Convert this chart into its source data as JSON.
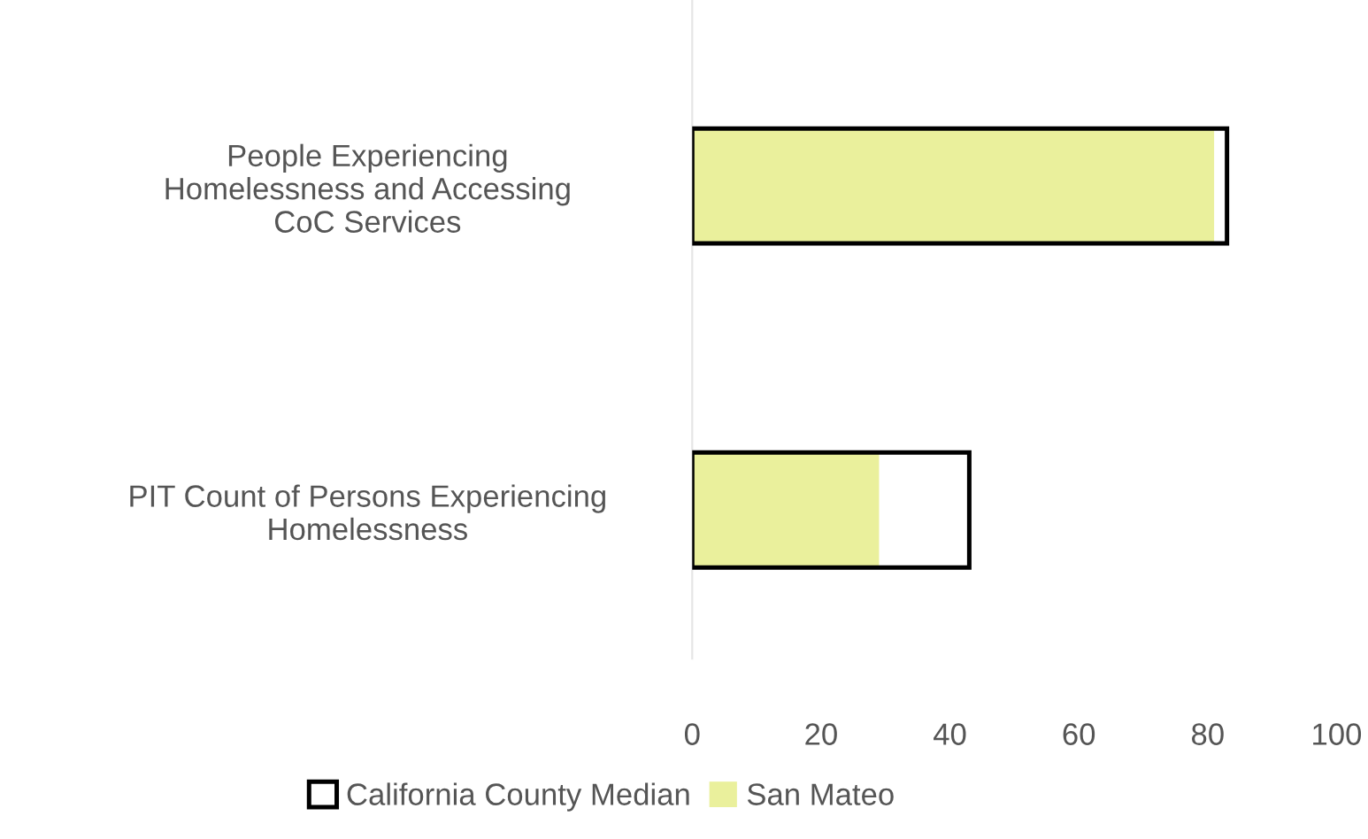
{
  "chart_data": {
    "type": "bar",
    "orientation": "horizontal",
    "categories": [
      "People Experiencing\nHomelessness and Accessing\nCoC Services",
      "PIT Count of Persons Experiencing\nHomelessness"
    ],
    "series": [
      {
        "name": "California County Median",
        "color": "#000000",
        "values": [
          83,
          43
        ]
      },
      {
        "name": "San Mateo",
        "color": "#eaf09c",
        "values": [
          81,
          29
        ]
      }
    ],
    "xlim": [
      0,
      100
    ],
    "xticks": [
      0,
      20,
      40,
      60,
      80,
      100
    ],
    "grid": false,
    "legend": "bottom"
  }
}
